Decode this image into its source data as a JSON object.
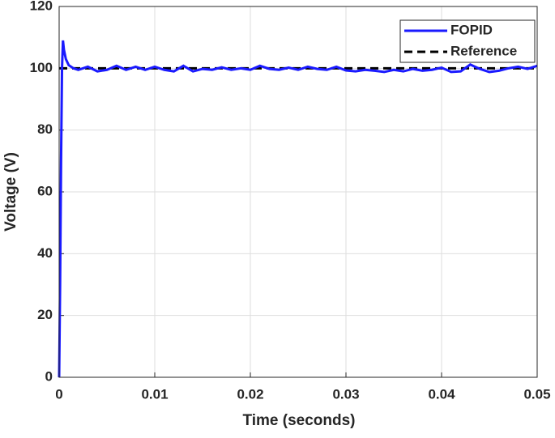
{
  "chart_data": {
    "type": "line",
    "xlabel": "Time (seconds)",
    "ylabel": "Voltage (V)",
    "xlim": [
      0,
      0.05
    ],
    "ylim": [
      0,
      120
    ],
    "xticks": [
      0,
      0.01,
      0.02,
      0.03,
      0.04,
      0.05
    ],
    "yticks": [
      0,
      20,
      40,
      60,
      80,
      100,
      120
    ],
    "grid": true,
    "legend": "northeast",
    "series": [
      {
        "name": "FOPID",
        "color": "#1a1aff",
        "dash": false,
        "x": [
          0,
          0.0001,
          0.0002,
          0.0003,
          0.0004,
          0.0005,
          0.0007,
          0.001,
          0.0015,
          0.002,
          0.003,
          0.004,
          0.005,
          0.006,
          0.007,
          0.008,
          0.009,
          0.01,
          0.011,
          0.012,
          0.013,
          0.014,
          0.015,
          0.016,
          0.017,
          0.018,
          0.019,
          0.02,
          0.021,
          0.022,
          0.023,
          0.024,
          0.025,
          0.026,
          0.027,
          0.028,
          0.029,
          0.03,
          0.031,
          0.032,
          0.033,
          0.034,
          0.035,
          0.036,
          0.037,
          0.038,
          0.039,
          0.04,
          0.041,
          0.042,
          0.043,
          0.044,
          0.045,
          0.046,
          0.047,
          0.048,
          0.049,
          0.05
        ],
        "values": [
          0,
          30,
          70,
          100,
          109,
          106,
          103,
          101,
          100,
          99.5,
          100.5,
          99,
          99.5,
          100.8,
          99.5,
          100.5,
          99.5,
          100.5,
          99.5,
          99,
          100.8,
          99,
          99.8,
          99.5,
          100.3,
          99.5,
          100,
          99.5,
          100.8,
          99.8,
          99.5,
          100.2,
          99.5,
          100.5,
          99.8,
          99.5,
          100.5,
          99.3,
          99,
          99.5,
          99.2,
          98.8,
          99.5,
          99,
          99.8,
          99.2,
          99.5,
          100.2,
          98.8,
          99,
          101.2,
          99.8,
          98.8,
          99.2,
          100,
          100.5,
          99.8,
          100.8
        ]
      },
      {
        "name": "Reference",
        "color": "#000000",
        "dash": true,
        "x": [
          0,
          0.05
        ],
        "values": [
          100,
          100
        ]
      }
    ]
  }
}
